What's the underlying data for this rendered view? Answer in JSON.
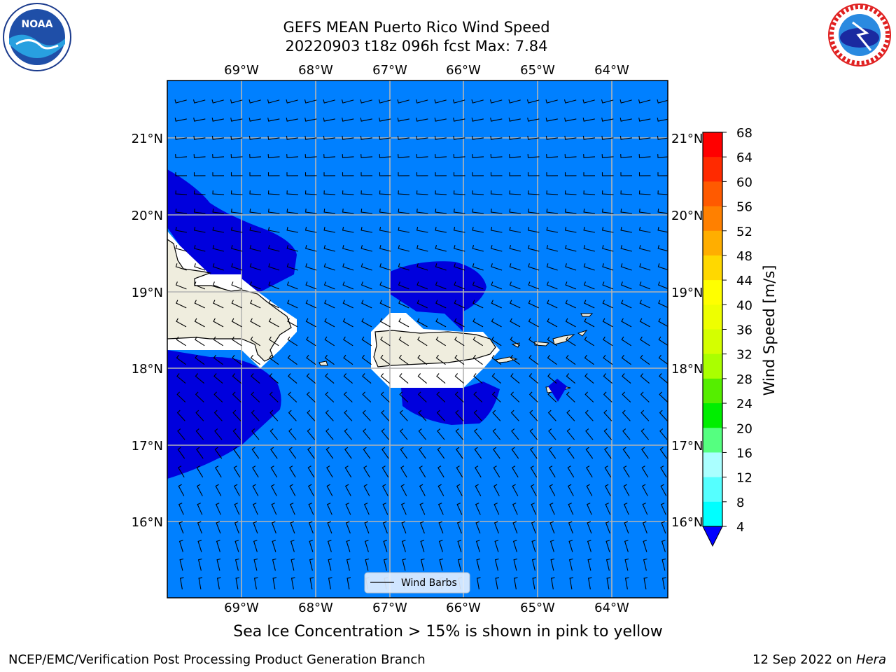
{
  "title": {
    "line1": "GEFS MEAN Puerto Rico Wind Speed",
    "line2": "20220903 t18z 096h fcst   Max: 7.84"
  },
  "map": {
    "lon_labels": [
      "69°W",
      "68°W",
      "67°W",
      "66°W",
      "65°W",
      "64°W"
    ],
    "lat_labels": [
      "21°N",
      "20°N",
      "19°N",
      "18°N",
      "17°N",
      "16°N"
    ],
    "legend_label": "Wind Barbs",
    "colors": {
      "ocean_4_8": "#0080ff",
      "band_below_4": "#0000dd",
      "land": "#efedde",
      "no_data": "#ffffff",
      "grid": "#b4b4b4"
    }
  },
  "colorbar": {
    "label": "Wind Speed [m/s]",
    "ticks": [
      "68",
      "64",
      "60",
      "56",
      "52",
      "48",
      "44",
      "40",
      "36",
      "32",
      "28",
      "24",
      "20",
      "16",
      "12",
      "8",
      "4"
    ],
    "colors": [
      "#ff0000",
      "#ff2a00",
      "#ff5a00",
      "#ff8000",
      "#ffae00",
      "#ffd800",
      "#ffff00",
      "#eeff00",
      "#d4ff00",
      "#aaff00",
      "#55ee00",
      "#00ee00",
      "#55ff80",
      "#aaffff",
      "#55ffff",
      "#00ffff",
      "#0080ff"
    ],
    "extend_color": "#0000ff"
  },
  "caption": "Sea Ice Concentration > 15% is shown in pink to yellow",
  "footer": {
    "left": "NCEP/EMC/Verification Post Processing Product Generation Branch",
    "right_date": "12 Sep 2022 on ",
    "right_machine": "Hera"
  },
  "logos": {
    "left": "noaa-logo",
    "right": "nws-logo"
  }
}
